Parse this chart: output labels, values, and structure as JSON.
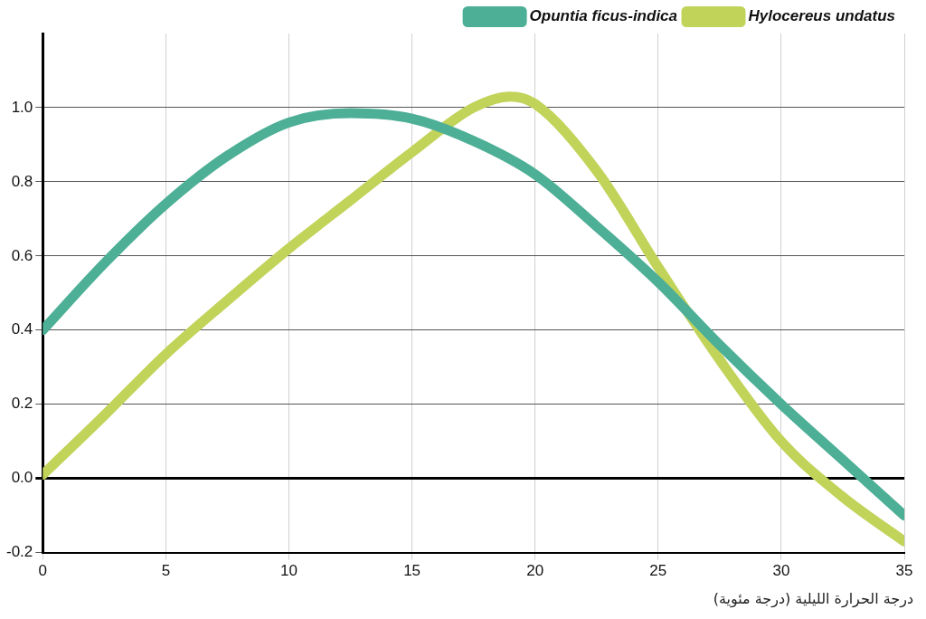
{
  "chart_data": {
    "type": "line",
    "xlabel": "درجة الحرارة الليلية (درجة مئوية)",
    "series": [
      {
        "name": "Opuntia ficus-indica",
        "color": "#4daf96",
        "x": [
          0,
          2.5,
          5,
          7.5,
          10,
          12.5,
          15,
          17.5,
          20,
          22.5,
          25,
          27.5,
          30,
          32.5,
          35
        ],
        "values": [
          0.4,
          0.58,
          0.74,
          0.87,
          0.96,
          0.985,
          0.97,
          0.91,
          0.82,
          0.68,
          0.53,
          0.36,
          0.2,
          0.05,
          -0.1
        ]
      },
      {
        "name": "Hylocereus undatus",
        "color": "#c2d35a",
        "x": [
          0,
          2.5,
          5,
          7.5,
          10,
          12.5,
          15,
          17.5,
          19,
          20,
          22.5,
          25,
          27.5,
          30,
          32.5,
          35
        ],
        "values": [
          0.01,
          0.17,
          0.335,
          0.48,
          0.62,
          0.75,
          0.88,
          1.0,
          1.03,
          1.01,
          0.83,
          0.57,
          0.32,
          0.1,
          -0.05,
          -0.17
        ]
      }
    ],
    "xlim": [
      0,
      35
    ],
    "xticks": [
      0,
      5,
      10,
      15,
      20,
      25,
      30,
      35
    ],
    "ylim": [
      -0.2,
      1.2
    ],
    "yticks": [
      {
        "value": -0.2,
        "label": "-0.2"
      },
      {
        "value": 0,
        "label": "0.0"
      },
      {
        "value": 0.2,
        "label": "0.2"
      },
      {
        "value": 0.4,
        "label": "0.4"
      },
      {
        "value": 0.6,
        "label": "0.6"
      },
      {
        "value": 0.8,
        "label": "0.8"
      },
      {
        "value": 1.0,
        "label": "1.0"
      }
    ],
    "grid": true,
    "legend": "top right",
    "marker": "none",
    "line_style": "solid"
  }
}
